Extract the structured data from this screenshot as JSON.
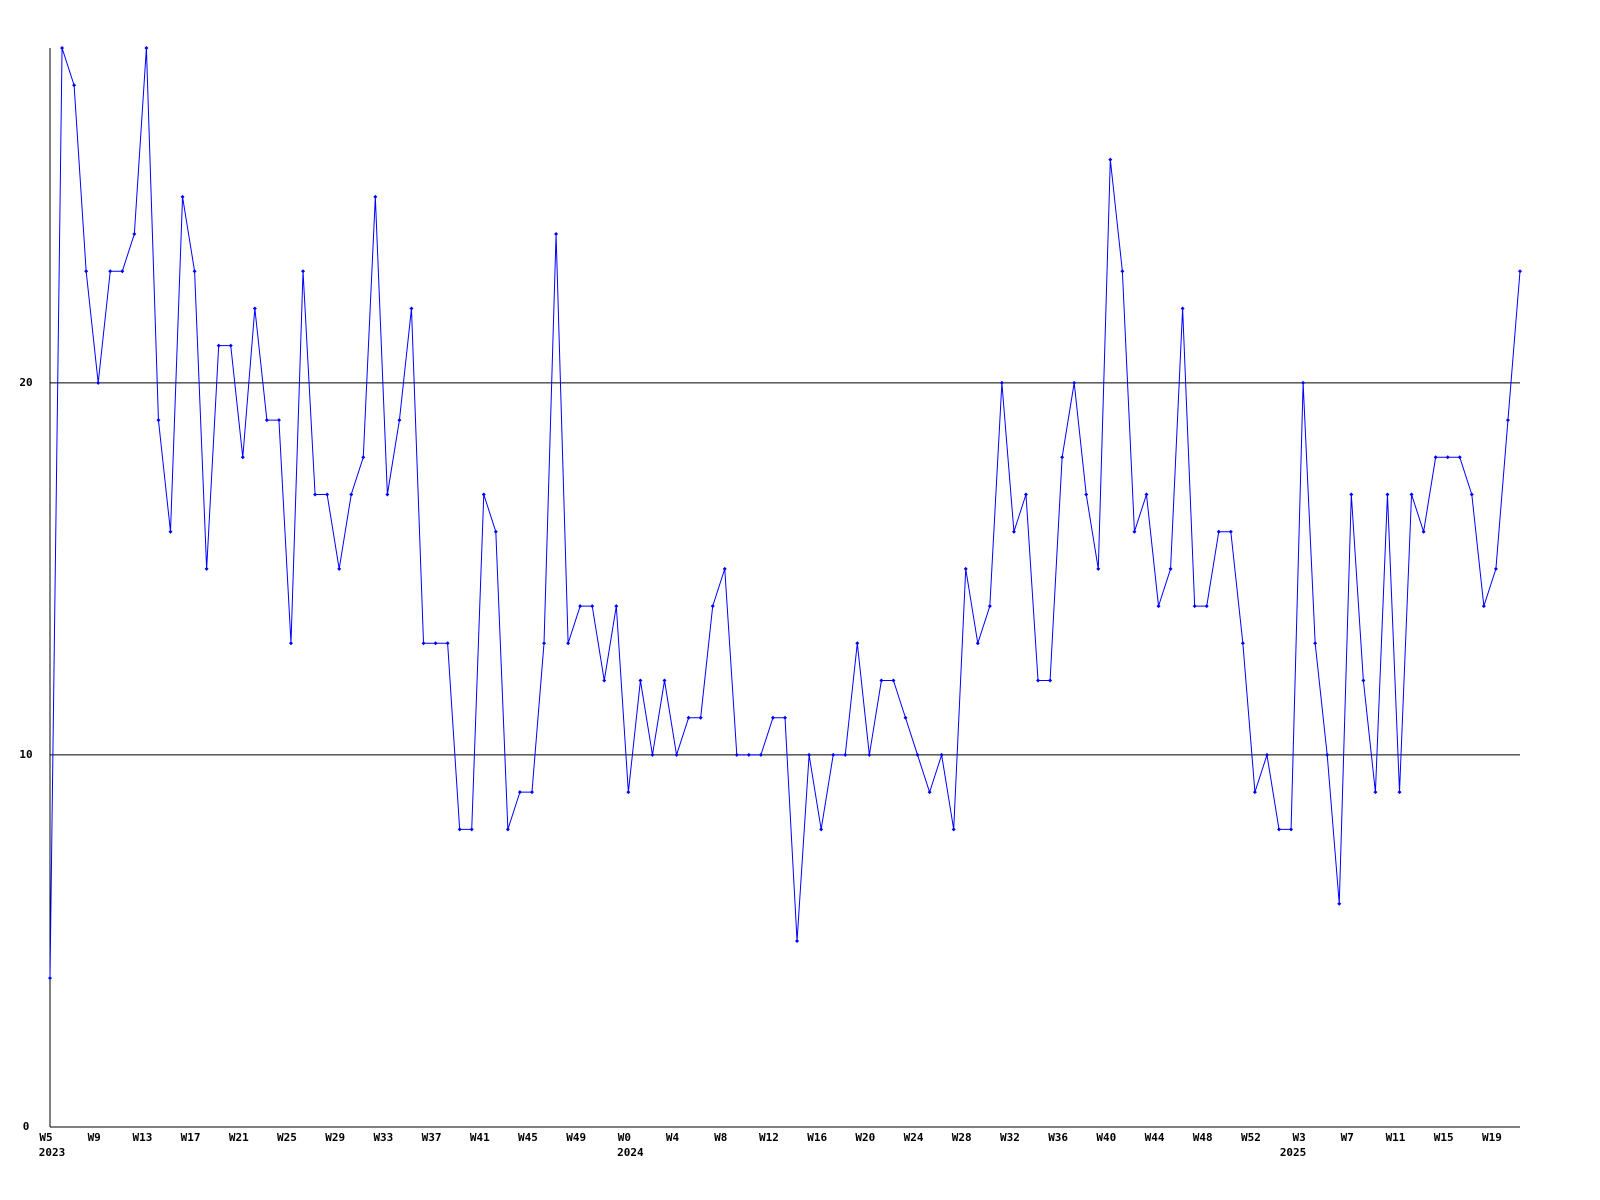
{
  "chart_data": {
    "type": "line",
    "categories": [
      "W5",
      null,
      null,
      null,
      "W9",
      null,
      null,
      null,
      "W13",
      null,
      null,
      null,
      "W17",
      null,
      null,
      null,
      "W21",
      null,
      null,
      null,
      "W25",
      null,
      null,
      null,
      "W29",
      null,
      null,
      null,
      "W33",
      null,
      null,
      null,
      "W37",
      null,
      null,
      null,
      "W41",
      null,
      null,
      null,
      "W45",
      null,
      null,
      null,
      "W49",
      null,
      null,
      null,
      "W0",
      null,
      null,
      null,
      "W4",
      null,
      null,
      null,
      "W8",
      null,
      null,
      null,
      "W12",
      null,
      null,
      null,
      "W16",
      null,
      null,
      null,
      "W20",
      null,
      null,
      null,
      "W24",
      null,
      null,
      null,
      "W28",
      null,
      null,
      null,
      "W32",
      null,
      null,
      null,
      "W36",
      null,
      null,
      null,
      "W40",
      null,
      null,
      null,
      "W44",
      null,
      null,
      null,
      "W48",
      null,
      null,
      null,
      "W52",
      null,
      null,
      null,
      "W3",
      null,
      null,
      null,
      "W7",
      null,
      null,
      null,
      "W11",
      null,
      null,
      null,
      "W15",
      null,
      null,
      null,
      "W19",
      null,
      null
    ],
    "years": [
      "2023",
      null,
      null,
      null,
      null,
      null,
      null,
      null,
      null,
      null,
      null,
      null,
      null,
      null,
      null,
      null,
      null,
      null,
      null,
      null,
      null,
      null,
      null,
      null,
      null,
      null,
      null,
      null,
      null,
      null,
      null,
      null,
      null,
      null,
      null,
      null,
      null,
      null,
      null,
      null,
      null,
      null,
      null,
      null,
      null,
      null,
      null,
      null,
      "2024",
      null,
      null,
      null,
      null,
      null,
      null,
      null,
      null,
      null,
      null,
      null,
      null,
      null,
      null,
      null,
      null,
      null,
      null,
      null,
      null,
      null,
      null,
      null,
      null,
      null,
      null,
      null,
      null,
      null,
      null,
      null,
      null,
      null,
      null,
      null,
      null,
      null,
      null,
      null,
      null,
      null,
      null,
      null,
      null,
      null,
      null,
      null,
      null,
      null,
      null,
      null,
      null,
      null,
      null,
      "2025",
      null,
      null,
      null,
      null,
      null,
      null,
      null,
      null,
      null,
      null,
      null,
      null,
      null,
      null,
      null,
      null,
      null,
      null,
      null,
      null
    ],
    "series": [
      {
        "color": "#0000ff",
        "values": [
          4,
          29,
          28,
          23,
          20,
          23,
          23,
          24,
          29,
          19,
          16,
          25,
          23,
          15,
          21,
          21,
          18,
          22,
          19,
          19,
          13,
          23,
          17,
          17,
          15,
          17,
          18,
          25,
          17,
          19,
          22,
          13,
          13,
          13,
          8,
          8,
          17,
          16,
          8,
          9,
          9,
          13,
          24,
          13,
          14,
          14,
          12,
          14,
          9,
          12,
          10,
          12,
          10,
          11,
          11,
          14,
          15,
          10,
          10,
          10,
          11,
          11,
          5,
          10,
          8,
          10,
          10,
          13,
          10,
          12,
          12,
          11,
          10,
          9,
          10,
          8,
          15,
          13,
          14,
          20,
          16,
          17,
          12,
          12,
          18,
          20,
          17,
          15,
          26,
          23,
          16,
          17,
          14,
          15,
          22,
          14,
          14,
          16,
          16,
          13,
          9,
          10,
          8,
          8,
          20,
          13,
          10,
          6,
          17,
          12,
          9,
          17,
          9,
          17,
          16,
          18,
          18,
          18,
          17,
          14,
          15,
          19,
          23
        ]
      }
    ],
    "ylim": [
      0,
      29
    ],
    "yticks": [
      0,
      10,
      20
    ],
    "grid": true
  }
}
